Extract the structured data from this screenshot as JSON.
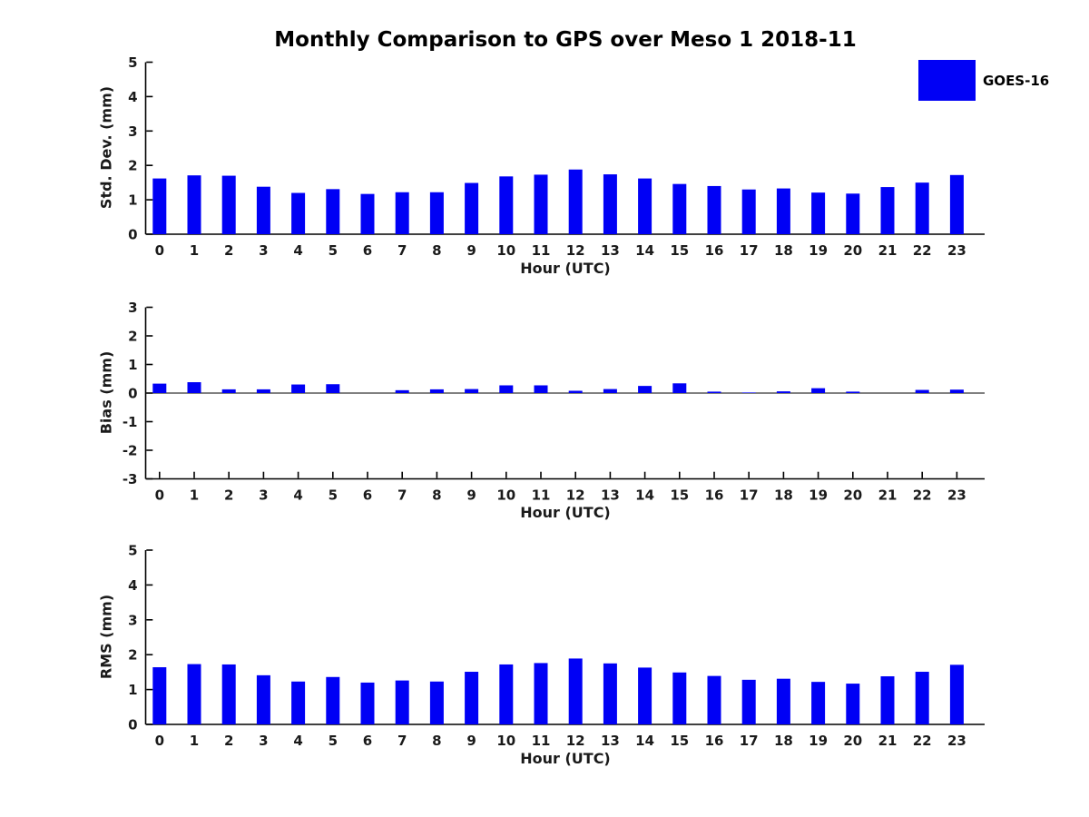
{
  "figure": {
    "legend": {
      "label": "GOES-16",
      "position": "top-right"
    }
  },
  "colors": {
    "bar": "#0000f5",
    "axis": "#000000",
    "tick_text": "#1a1a1a"
  },
  "chart_data": [
    {
      "type": "bar",
      "title": "Monthly Comparison to GPS over Meso 1 2018-11",
      "ylabel": "Std. Dev. (mm)",
      "xlabel": "Hour (UTC)",
      "categories": [
        "0",
        "1",
        "2",
        "3",
        "4",
        "5",
        "6",
        "7",
        "8",
        "9",
        "10",
        "11",
        "12",
        "13",
        "14",
        "15",
        "16",
        "17",
        "18",
        "19",
        "20",
        "21",
        "22",
        "23"
      ],
      "series": [
        {
          "name": "GOES-16",
          "values": [
            1.62,
            1.71,
            1.7,
            1.38,
            1.2,
            1.31,
            1.17,
            1.22,
            1.22,
            1.49,
            1.68,
            1.73,
            1.88,
            1.74,
            1.62,
            1.46,
            1.4,
            1.3,
            1.33,
            1.21,
            1.18,
            1.37,
            1.5,
            1.72
          ]
        }
      ],
      "ylim": [
        0,
        5
      ],
      "yticks": [
        0,
        1,
        2,
        3,
        4,
        5
      ],
      "grid": false
    },
    {
      "type": "bar",
      "title": "",
      "ylabel": "Bias (mm)",
      "xlabel": "Hour (UTC)",
      "categories": [
        "0",
        "1",
        "2",
        "3",
        "4",
        "5",
        "6",
        "7",
        "8",
        "9",
        "10",
        "11",
        "12",
        "13",
        "14",
        "15",
        "16",
        "17",
        "18",
        "19",
        "20",
        "21",
        "22",
        "23"
      ],
      "series": [
        {
          "name": "GOES-16",
          "values": [
            0.33,
            0.38,
            0.13,
            0.13,
            0.3,
            0.31,
            0.0,
            0.1,
            0.13,
            0.14,
            0.27,
            0.27,
            0.08,
            0.14,
            0.25,
            0.34,
            0.05,
            0.02,
            0.06,
            0.17,
            0.05,
            0.0,
            0.11,
            0.12
          ]
        }
      ],
      "ylim": [
        -3,
        3
      ],
      "yticks": [
        -3,
        -2,
        -1,
        0,
        1,
        2,
        3
      ],
      "grid": false
    },
    {
      "type": "bar",
      "title": "",
      "ylabel": "RMS (mm)",
      "xlabel": "Hour (UTC)",
      "categories": [
        "0",
        "1",
        "2",
        "3",
        "4",
        "5",
        "6",
        "7",
        "8",
        "9",
        "10",
        "11",
        "12",
        "13",
        "14",
        "15",
        "16",
        "17",
        "18",
        "19",
        "20",
        "21",
        "22",
        "23"
      ],
      "series": [
        {
          "name": "GOES-16",
          "values": [
            1.64,
            1.73,
            1.72,
            1.41,
            1.23,
            1.36,
            1.2,
            1.26,
            1.23,
            1.51,
            1.72,
            1.76,
            1.89,
            1.75,
            1.63,
            1.49,
            1.39,
            1.28,
            1.31,
            1.22,
            1.17,
            1.38,
            1.51,
            1.71
          ]
        }
      ],
      "ylim": [
        0,
        5
      ],
      "yticks": [
        0,
        1,
        2,
        3,
        4,
        5
      ],
      "grid": false
    }
  ]
}
